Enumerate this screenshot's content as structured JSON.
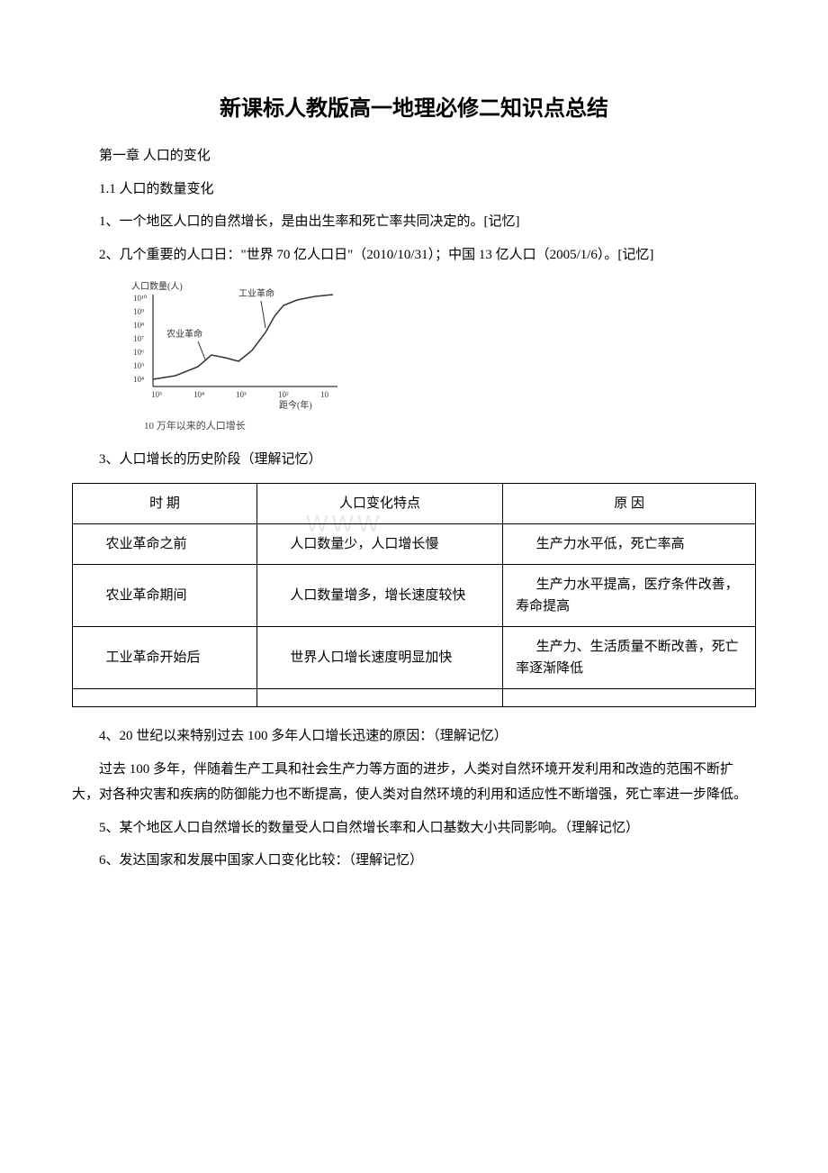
{
  "title": "新课标人教版高一地理必修二知识点总结",
  "chapter": "第一章 人口的变化",
  "section": "1.1 人口的数量变化",
  "para1": "1、一个地区人口的自然增长，是由出生率和死亡率共同决定的。[记忆]",
  "para2": "2、几个重要的人口日：\"世界 70 亿人口日\"（2010/10/31）；中国 13 亿人口（2005/1/6）。[记忆]",
  "chart": {
    "y_label": "人口数量(人)",
    "y_ticks": [
      "10⁴",
      "10⁵",
      "10⁶",
      "10⁷",
      "10⁸",
      "10⁹",
      "10¹⁰"
    ],
    "x_label": "距今(年)",
    "x_ticks": [
      "10⁵",
      "10⁴",
      "10³",
      "10²",
      "10"
    ],
    "annotation_agri": "农业革命",
    "annotation_indu": "工业革命",
    "caption": "10 万年以来的人口增长",
    "line_color": "#333333",
    "axis_color": "#000000",
    "text_color": "#333333",
    "background_color": "#ffffff",
    "curve_points": [
      [
        30,
        112
      ],
      [
        55,
        108
      ],
      [
        80,
        98
      ],
      [
        95,
        85
      ],
      [
        110,
        88
      ],
      [
        125,
        92
      ],
      [
        140,
        80
      ],
      [
        155,
        60
      ],
      [
        165,
        42
      ],
      [
        175,
        30
      ],
      [
        190,
        24
      ],
      [
        210,
        20
      ],
      [
        230,
        18
      ]
    ]
  },
  "para3": "3、人口增长的历史阶段（理解记忆）",
  "table": {
    "columns": [
      "时 期",
      "人口变化特点",
      "原 因"
    ],
    "rows": [
      [
        "农业革命之前",
        "人口数量少，人口增长慢",
        "生产力水平低，死亡率高"
      ],
      [
        "农业革命期间",
        "人口数量增多，增长速度较快",
        "生产力水平提高，医疗条件改善，寿命提高"
      ],
      [
        "工业革命开始后",
        "世界人口增长速度明显加快",
        "生产力、生活质量不断改善，死亡率逐渐降低"
      ]
    ]
  },
  "watermark": "WWW",
  "para4": "4、20 世纪以来特别过去 100 多年人口增长迅速的原因：（理解记忆）",
  "para5": "过去 100 多年，伴随着生产工具和社会生产力等方面的进步，人类对自然环境开发利用和改造的范围不断扩大，对各种灾害和疾病的防御能力也不断提高，使人类对自然环境的利用和适应性不断增强，死亡率进一步降低。",
  "para6": "5、某个地区人口自然增长的数量受人口自然增长率和人口基数大小共同影响。（理解记忆）",
  "para7": "6、发达国家和发展中国家人口变化比较：（理解记忆）"
}
